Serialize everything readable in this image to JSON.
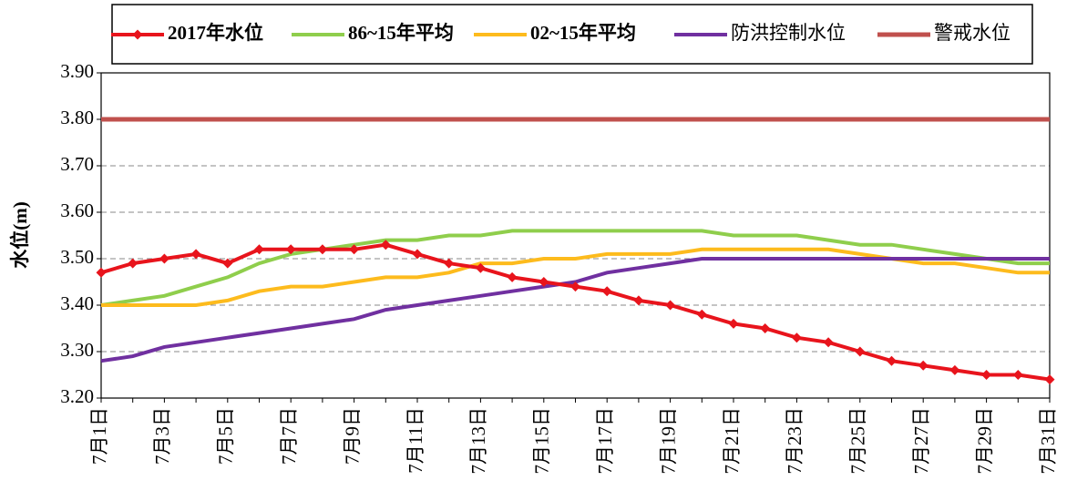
{
  "chart_data": {
    "type": "line",
    "y_label": "水位(m)",
    "categories": [
      "7月1日",
      null,
      "7月3日",
      null,
      "7月5日",
      null,
      "7月7日",
      null,
      "7月9日",
      null,
      "7月11日",
      null,
      "7月13日",
      null,
      "7月15日",
      null,
      "7月17日",
      null,
      "7月19日",
      null,
      "7月21日",
      null,
      "7月23日",
      null,
      "7月25日",
      null,
      "7月27日",
      null,
      "7月29日",
      null,
      "7月31日"
    ],
    "series": [
      {
        "name": "2017年水位",
        "color": "#e8141c",
        "marker": "diamond",
        "values": [
          3.47,
          3.49,
          3.5,
          3.51,
          3.49,
          3.52,
          3.52,
          3.52,
          3.52,
          3.53,
          3.51,
          3.49,
          3.48,
          3.46,
          3.45,
          3.44,
          3.43,
          3.41,
          3.4,
          3.38,
          3.36,
          3.35,
          3.33,
          3.32,
          3.3,
          3.28,
          3.27,
          3.26,
          3.25,
          3.25,
          3.24
        ]
      },
      {
        "name": "86~15年平均",
        "color": "#8fce4c",
        "values": [
          3.4,
          3.41,
          3.42,
          3.44,
          3.46,
          3.49,
          3.51,
          3.52,
          3.53,
          3.54,
          3.54,
          3.55,
          3.55,
          3.56,
          3.56,
          3.56,
          3.56,
          3.56,
          3.56,
          3.56,
          3.55,
          3.55,
          3.55,
          3.54,
          3.53,
          3.53,
          3.52,
          3.51,
          3.5,
          3.49,
          3.49
        ]
      },
      {
        "name": "02~15年平均",
        "color": "#fdbb1d",
        "values": [
          3.4,
          3.4,
          3.4,
          3.4,
          3.41,
          3.43,
          3.44,
          3.44,
          3.45,
          3.46,
          3.46,
          3.47,
          3.49,
          3.49,
          3.5,
          3.5,
          3.51,
          3.51,
          3.51,
          3.52,
          3.52,
          3.52,
          3.52,
          3.52,
          3.51,
          3.5,
          3.49,
          3.49,
          3.48,
          3.47,
          3.47
        ]
      },
      {
        "name": "防洪控制水位",
        "color": "#7030a0",
        "values": [
          3.28,
          3.29,
          3.31,
          3.32,
          3.33,
          3.34,
          3.35,
          3.36,
          3.37,
          3.39,
          3.4,
          3.41,
          3.42,
          3.43,
          3.44,
          3.45,
          3.47,
          3.48,
          3.49,
          3.5,
          3.5,
          3.5,
          3.5,
          3.5,
          3.5,
          3.5,
          3.5,
          3.5,
          3.5,
          3.5,
          3.5
        ]
      },
      {
        "name": "警戒水位",
        "color": "#c0504d",
        "values": [
          3.8,
          3.8,
          3.8,
          3.8,
          3.8,
          3.8,
          3.8,
          3.8,
          3.8,
          3.8,
          3.8,
          3.8,
          3.8,
          3.8,
          3.8,
          3.8,
          3.8,
          3.8,
          3.8,
          3.8,
          3.8,
          3.8,
          3.8,
          3.8,
          3.8,
          3.8,
          3.8,
          3.8,
          3.8,
          3.8,
          3.8
        ]
      }
    ],
    "ylim": [
      3.2,
      3.9
    ],
    "yticks": [
      {
        "value": 3.2,
        "label": "3.20"
      },
      {
        "value": 3.3,
        "label": "3.30"
      },
      {
        "value": 3.4,
        "label": "3.40"
      },
      {
        "value": 3.5,
        "label": "3.50"
      },
      {
        "value": 3.6,
        "label": "3.60"
      },
      {
        "value": 3.7,
        "label": "3.70"
      },
      {
        "value": 3.8,
        "label": "3.80"
      },
      {
        "value": 3.9,
        "label": "3.90"
      }
    ],
    "grid": true,
    "legend": "top"
  }
}
